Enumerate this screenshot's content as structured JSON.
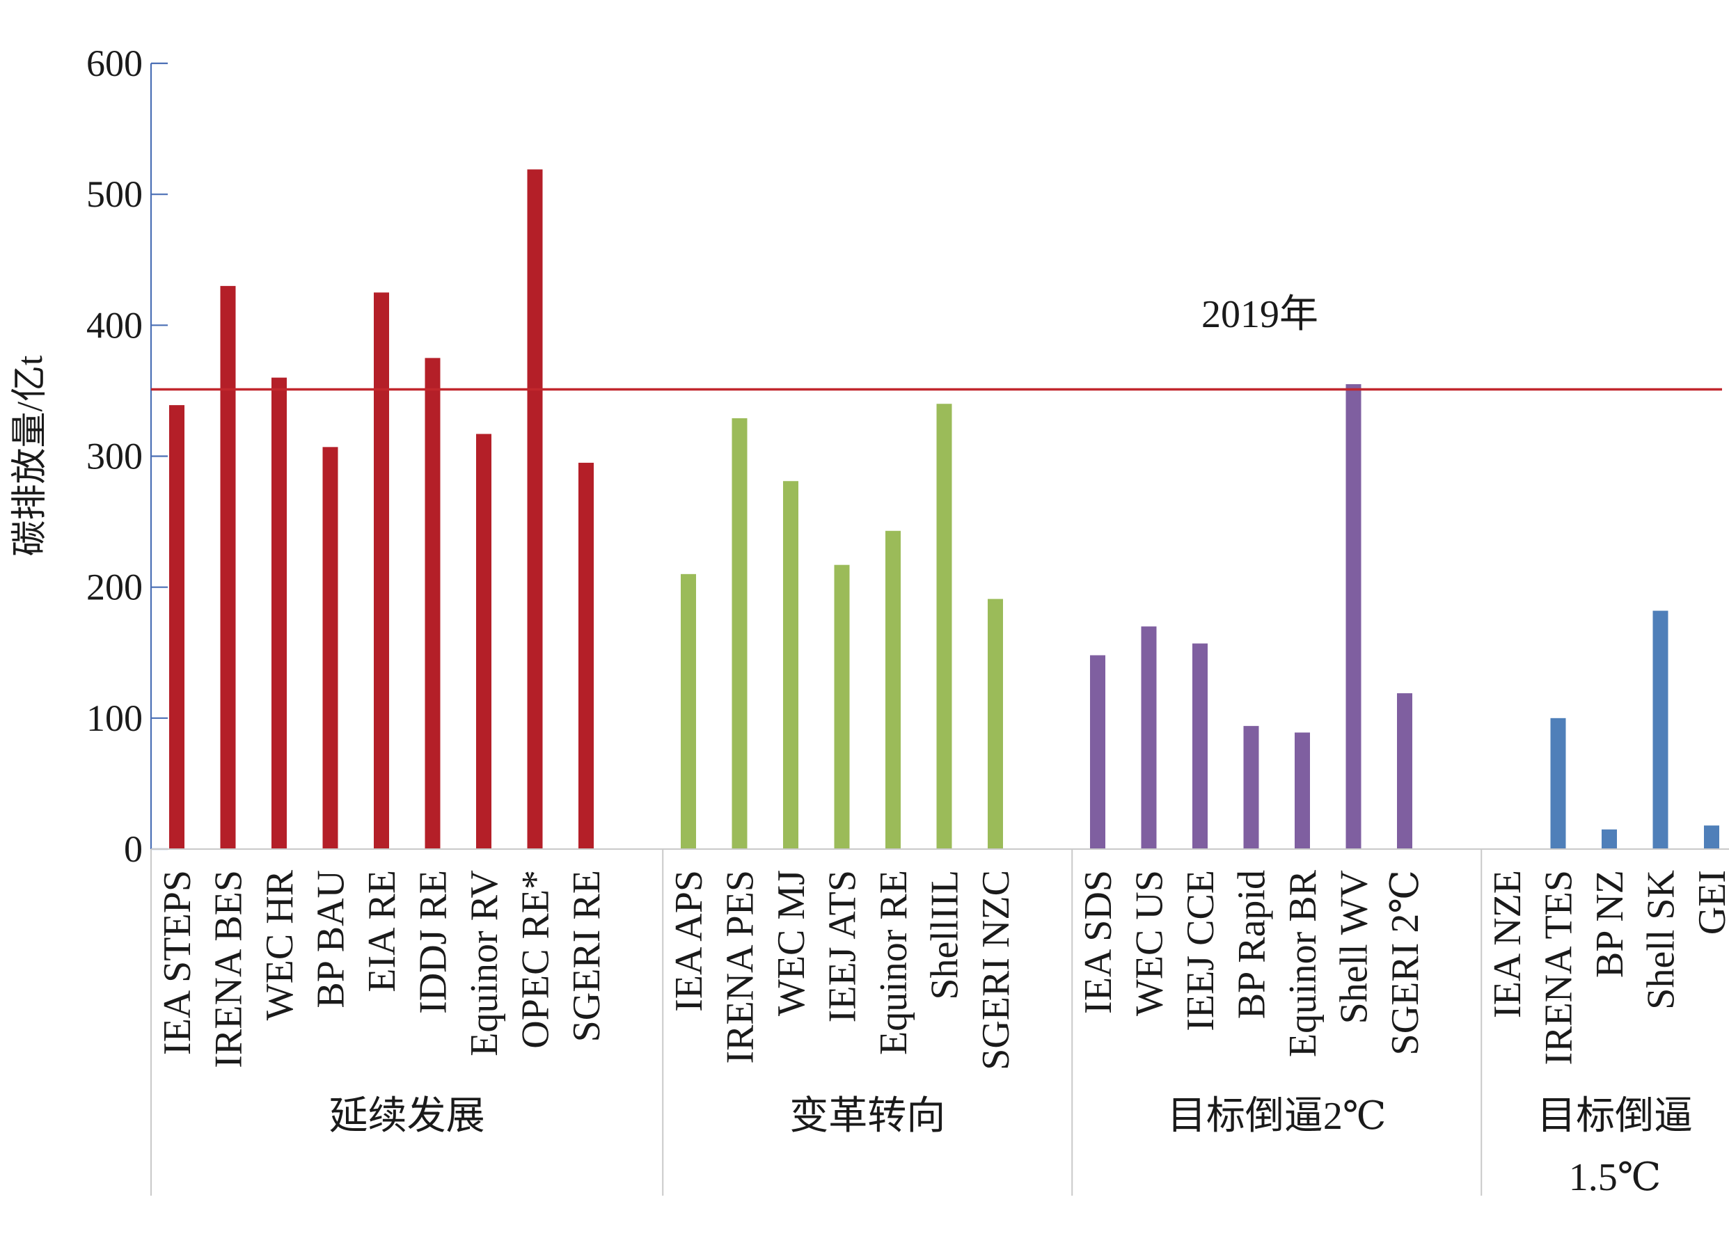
{
  "chart_data": {
    "type": "bar",
    "ylabel": "碳排放量/亿t",
    "ylim": [
      0,
      600
    ],
    "yticks": [
      "0",
      "100",
      "200",
      "300",
      "400",
      "500",
      "600"
    ],
    "grid": false,
    "legend": "none",
    "reference_line": {
      "label": "2019年",
      "value": 351,
      "color": "#c1272d"
    },
    "groups": [
      {
        "name": "延续发展",
        "color": "#b41f28",
        "categories": [
          "IEA STEPS",
          "IRENA BES",
          "WEC HR",
          "BP BAU",
          "EIA RE",
          "IDDJ RE",
          "Equinor RV",
          "OPEC RE*",
          "SGERI RE"
        ],
        "values": [
          339,
          430,
          360,
          307,
          425,
          375,
          317,
          519,
          295
        ]
      },
      {
        "name": "变革转向",
        "color": "#9bbb59",
        "categories": [
          "IEA APS",
          "IRENA PES",
          "WEC MJ",
          "IEEJ ATS",
          "Equinor RE",
          "ShellIIL",
          "SGERI NZC"
        ],
        "values": [
          210,
          329,
          281,
          217,
          243,
          340,
          191
        ]
      },
      {
        "name": "目标倒逼2℃",
        "color": "#7f5fa0",
        "categories": [
          "IEA SDS",
          "WEC US",
          "IEEJ CCE",
          "BP Rapid",
          "Equinor BR",
          "Shell WV",
          "SGERI 2℃"
        ],
        "values": [
          148,
          170,
          157,
          94,
          89,
          355,
          119
        ]
      },
      {
        "name_lines": [
          "目标倒逼",
          "1.5℃"
        ],
        "color": "#4f7fb9",
        "categories": [
          "IEA NZE",
          "IRENA TES",
          "BP NZ",
          "Shell SK",
          "GEI"
        ],
        "values": [
          null,
          100,
          15,
          182,
          18
        ]
      }
    ]
  }
}
